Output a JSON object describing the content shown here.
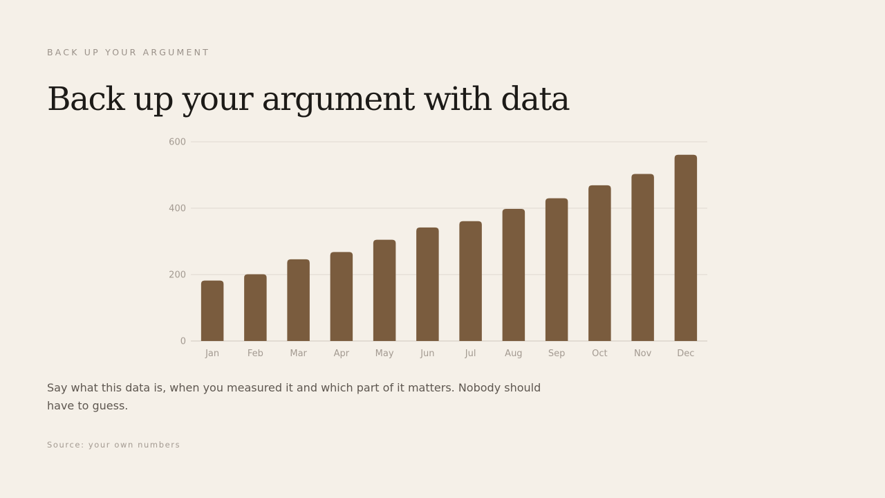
{
  "slide": {
    "eyebrow": "BACK UP YOUR ARGUMENT",
    "title": "Back up your argument with data",
    "caption": "Say what this data is, when you measured it and which part of it matters. Nobody should have to guess.",
    "source": "Source: your own numbers"
  },
  "chart_data": {
    "type": "bar",
    "categories": [
      "Jan",
      "Feb",
      "Mar",
      "Apr",
      "May",
      "Jun",
      "Jul",
      "Aug",
      "Sep",
      "Oct",
      "Nov",
      "Dec"
    ],
    "values": [
      182,
      201,
      246,
      268,
      305,
      342,
      361,
      398,
      430,
      469,
      503,
      561
    ],
    "title": "",
    "xlabel": "",
    "ylabel": "",
    "ylim": [
      0,
      600
    ],
    "yticks": [
      0,
      200,
      400,
      600
    ],
    "grid": true,
    "legend": "none",
    "bar_color": "#7a5c3e"
  }
}
